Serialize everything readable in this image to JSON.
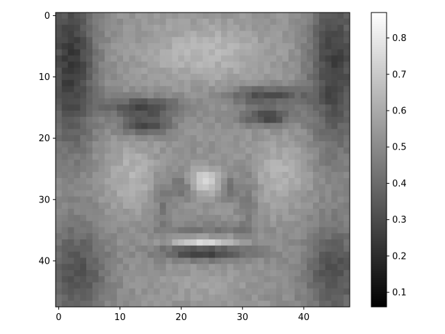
{
  "chart_data": {
    "type": "heatmap",
    "colormap": "gray",
    "image_shape": [
      48,
      48
    ],
    "xlim": [
      -0.5,
      47.5
    ],
    "ylim": [
      47.5,
      -0.5
    ],
    "x_ticks": [
      0,
      10,
      20,
      30,
      40
    ],
    "y_ticks": [
      0,
      10,
      20,
      30,
      40
    ],
    "colorbar": {
      "range": [
        0.06,
        0.87
      ],
      "ticks": [
        0.1,
        0.2,
        0.3,
        0.4,
        0.5,
        0.6,
        0.7,
        0.8
      ]
    },
    "grid": false
  }
}
